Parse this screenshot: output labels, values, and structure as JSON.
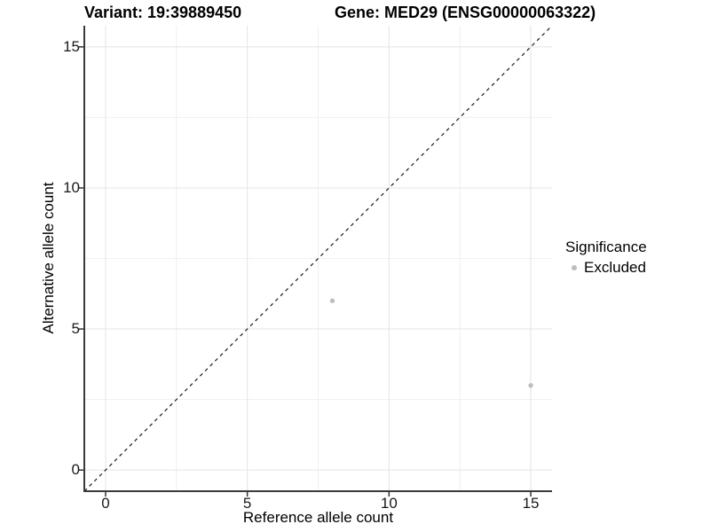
{
  "figure": {
    "title_left": "Variant: 19:39889450",
    "title_right": "Gene: MED29 (ENSG00000063322)"
  },
  "legend": {
    "title": "Significance",
    "items": [
      {
        "label": "Excluded",
        "color": "#bebebe"
      }
    ]
  },
  "chart_data": {
    "type": "scatter",
    "title": "Variant: 19:39889450    Gene: MED29 (ENSG00000063322)",
    "xlabel": "Reference allele count",
    "ylabel": "Alternative allele count",
    "xlim": [
      -0.75,
      15.75
    ],
    "ylim": [
      -0.75,
      15.75
    ],
    "x_ticks": [
      0,
      5,
      10,
      15
    ],
    "y_ticks": [
      0,
      5,
      10,
      15
    ],
    "x_minor_ticks": [
      2.5,
      7.5,
      12.5
    ],
    "y_minor_ticks": [
      2.5,
      7.5,
      12.5
    ],
    "grid": true,
    "legend_position": "right",
    "series": [
      {
        "name": "Excluded",
        "color": "#bebebe",
        "points": [
          {
            "x": 8,
            "y": 6
          },
          {
            "x": 15,
            "y": 3
          }
        ]
      }
    ],
    "reference_line": {
      "type": "identity",
      "slope": 1,
      "intercept": 0,
      "style": "dashed",
      "color": "#1a1a1a"
    }
  },
  "style_colors": {
    "grid_major": "#e4e4e4",
    "grid_minor": "#f0f0f0",
    "axis_line": "#3a3a3a",
    "tick_mark": "#333333",
    "point": "#bebebe"
  }
}
